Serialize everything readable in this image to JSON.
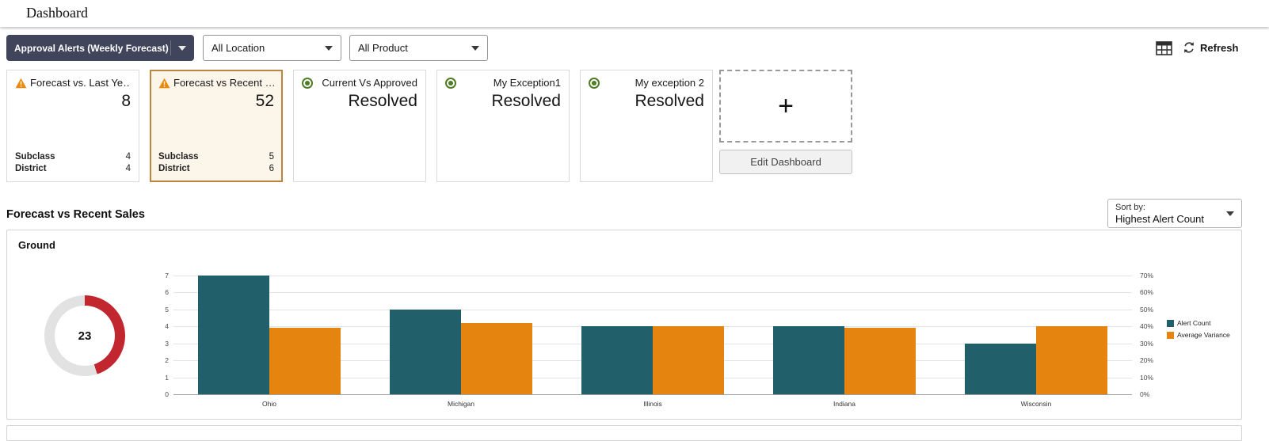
{
  "page": {
    "title": "Dashboard"
  },
  "toolbar": {
    "dashboard_select": "Approval Alerts (Weekly Forecast)",
    "location_select": "All Location",
    "product_select": "All Product",
    "refresh_label": "Refresh"
  },
  "tiles": [
    {
      "type": "warning",
      "label": "Forecast vs. Last Ye…",
      "value": "8",
      "selected": false,
      "details": [
        {
          "name": "Subclass",
          "value": "4"
        },
        {
          "name": "District",
          "value": "4"
        }
      ]
    },
    {
      "type": "warning",
      "label": "Forecast vs Recent …",
      "value": "52",
      "selected": true,
      "details": [
        {
          "name": "Subclass",
          "value": "5"
        },
        {
          "name": "District",
          "value": "6"
        }
      ]
    },
    {
      "type": "resolved",
      "label": "Current Vs Approved",
      "value": "Resolved",
      "selected": false,
      "details": []
    },
    {
      "type": "resolved",
      "label": "My Exception1",
      "value": "Resolved",
      "selected": false,
      "details": []
    },
    {
      "type": "resolved",
      "label": "My exception 2",
      "value": "Resolved",
      "selected": false,
      "details": []
    }
  ],
  "add_panel": {
    "plus": "+",
    "edit_button": "Edit Dashboard"
  },
  "section": {
    "title": "Forecast vs Recent Sales",
    "sort_label": "Sort by:",
    "sort_value": "Highest Alert Count"
  },
  "chart_data": {
    "type": "bar",
    "title": "Ground",
    "donut": {
      "value": "23",
      "fraction": 0.45,
      "color": "#c2262e",
      "track": "#e2e2e2"
    },
    "categories": [
      "Ohio",
      "Michigan",
      "Illinois",
      "Indiana",
      "Wisconsin"
    ],
    "series": [
      {
        "name": "Alert Count",
        "axis": "left",
        "color": "#215f6b",
        "values": [
          7,
          5,
          4,
          4,
          3
        ]
      },
      {
        "name": "Average Variance",
        "axis": "right",
        "color": "#e5850f",
        "values_pct": [
          39,
          42,
          40,
          39,
          40
        ]
      }
    ],
    "left_axis": {
      "ticks": [
        0,
        1,
        2,
        3,
        4,
        5,
        6,
        7
      ],
      "max": 7
    },
    "right_axis": {
      "ticks": [
        "0%",
        "10%",
        "20%",
        "30%",
        "40%",
        "50%",
        "60%",
        "70%"
      ],
      "max": 70
    },
    "legend_position": "right",
    "grid": true
  }
}
